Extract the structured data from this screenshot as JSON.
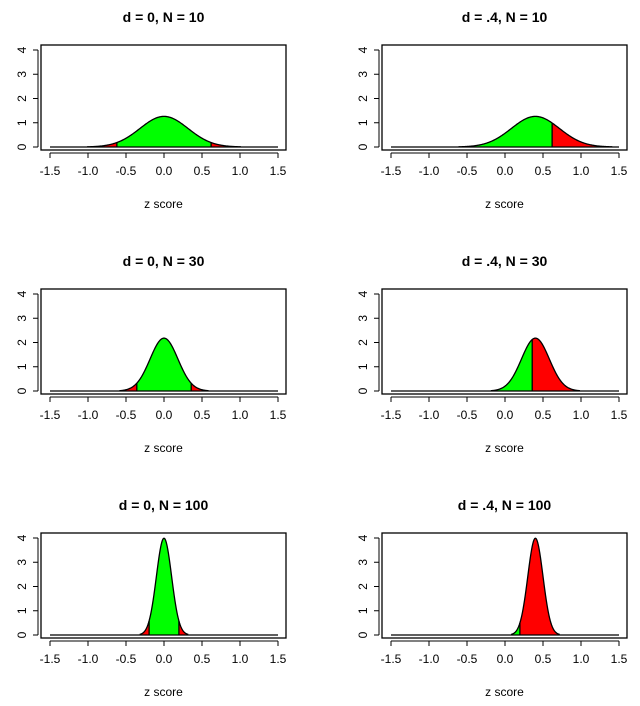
{
  "colors": {
    "accept": "#00ff00",
    "reject": "#ff0000",
    "line": "#000000"
  },
  "chart_data": [
    {
      "type": "area",
      "title": "d = 0, N = 10",
      "xlabel": "z score",
      "ylabel": "",
      "distribution": "normal",
      "mean": 0,
      "sd": 0.316,
      "critical_value": 0.62,
      "xlim": [
        -1.5,
        1.5
      ],
      "ylim": [
        0,
        4
      ],
      "xticks": [
        "-1.5",
        "-1.0",
        "-0.5",
        "0.0",
        "0.5",
        "1.0",
        "1.5"
      ],
      "yticks": [
        "0",
        "1",
        "2",
        "3",
        "4"
      ],
      "grid": false
    },
    {
      "type": "area",
      "title": "d = .4, N = 10",
      "xlabel": "z score",
      "ylabel": "",
      "distribution": "normal",
      "mean": 0.4,
      "sd": 0.316,
      "critical_value": 0.62,
      "xlim": [
        -1.5,
        1.5
      ],
      "ylim": [
        0,
        4
      ],
      "xticks": [
        "-1.5",
        "-1.0",
        "-0.5",
        "0.0",
        "0.5",
        "1.0",
        "1.5"
      ],
      "yticks": [
        "0",
        "1",
        "2",
        "3",
        "4"
      ],
      "grid": false
    },
    {
      "type": "area",
      "title": "d = 0, N = 30",
      "xlabel": "z score",
      "ylabel": "",
      "distribution": "normal",
      "mean": 0,
      "sd": 0.183,
      "critical_value": 0.358,
      "xlim": [
        -1.5,
        1.5
      ],
      "ylim": [
        0,
        4
      ],
      "xticks": [
        "-1.5",
        "-1.0",
        "-0.5",
        "0.0",
        "0.5",
        "1.0",
        "1.5"
      ],
      "yticks": [
        "0",
        "1",
        "2",
        "3",
        "4"
      ],
      "grid": false
    },
    {
      "type": "area",
      "title": "d = .4, N = 30",
      "xlabel": "z score",
      "ylabel": "",
      "distribution": "normal",
      "mean": 0.4,
      "sd": 0.183,
      "critical_value": 0.358,
      "xlim": [
        -1.5,
        1.5
      ],
      "ylim": [
        0,
        4
      ],
      "xticks": [
        "-1.5",
        "-1.0",
        "-0.5",
        "0.0",
        "0.5",
        "1.0",
        "1.5"
      ],
      "yticks": [
        "0",
        "1",
        "2",
        "3",
        "4"
      ],
      "grid": false
    },
    {
      "type": "area",
      "title": "d = 0, N = 100",
      "xlabel": "z score",
      "ylabel": "",
      "distribution": "normal",
      "mean": 0,
      "sd": 0.1,
      "critical_value": 0.196,
      "xlim": [
        -1.5,
        1.5
      ],
      "ylim": [
        0,
        4
      ],
      "xticks": [
        "-1.5",
        "-1.0",
        "-0.5",
        "0.0",
        "0.5",
        "1.0",
        "1.5"
      ],
      "yticks": [
        "0",
        "1",
        "2",
        "3",
        "4"
      ],
      "grid": false
    },
    {
      "type": "area",
      "title": "d = .4, N = 100",
      "xlabel": "z score",
      "ylabel": "",
      "distribution": "normal",
      "mean": 0.4,
      "sd": 0.1,
      "critical_value": 0.196,
      "xlim": [
        -1.5,
        1.5
      ],
      "ylim": [
        0,
        4
      ],
      "xticks": [
        "-1.5",
        "-1.0",
        "-0.5",
        "0.0",
        "0.5",
        "1.0",
        "1.5"
      ],
      "yticks": [
        "0",
        "1",
        "2",
        "3",
        "4"
      ],
      "grid": false
    }
  ]
}
